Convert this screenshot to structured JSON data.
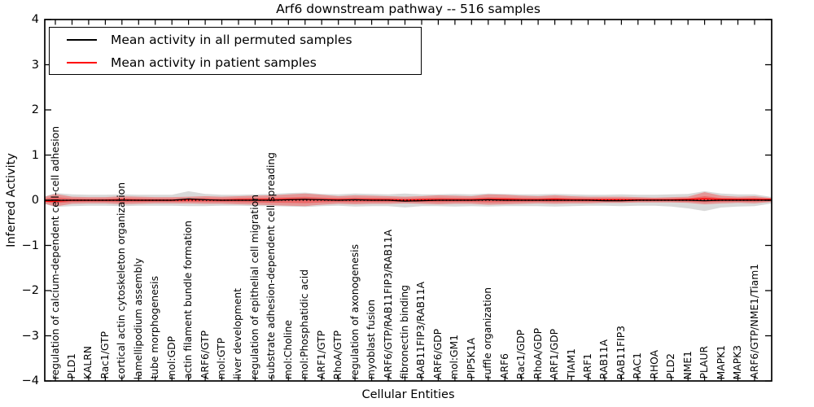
{
  "title": "Arf6 downstream pathway -- 516 samples",
  "axes": {
    "y_label": "Inferred Activity",
    "x_label": "Cellular Entities",
    "y_ticks": [
      "4",
      "3",
      "2",
      "1",
      "0",
      "−1",
      "−2",
      "−3",
      "−4"
    ]
  },
  "legend": {
    "items": [
      {
        "label": "Mean activity in all permuted samples",
        "color": "#000000"
      },
      {
        "label": "Mean activity in patient samples",
        "color": "#ff0000"
      }
    ]
  },
  "chart_data": {
    "type": "line",
    "title": "Arf6 downstream pathway -- 516 samples",
    "xlabel": "Cellular Entities",
    "ylabel": "Inferred Activity",
    "ylim": [
      -4,
      4
    ],
    "grid": false,
    "legend_position": "upper left",
    "categories": [
      "regulation of calcium-dependent cell-cell adhesion",
      "PLD1",
      "KALRN",
      "Rac1/GTP",
      "cortical actin cytoskeleton organization",
      "lamellipodium assembly",
      "tube morphogenesis",
      "mol:GDP",
      "actin filament bundle formation",
      "ARF6/GTP",
      "mol:GTP",
      "liver development",
      "regulation of epithelial cell migration",
      "substrate adhesion-dependent cell spreading",
      "mol:Choline",
      "mol:Phosphatidic acid",
      "ARF1/GTP",
      "RhoA/GTP",
      "regulation of axonogenesis",
      "myoblast fusion",
      "ARF6/GTP/RAB11FIP3/RAB11A",
      "fibronectin binding",
      "RAB11FIP3/RAB11A",
      "ARF6/GDP",
      "mol:GM1",
      "PIP5K1A",
      "ruffle organization",
      "ARF6",
      "Rac1/GDP",
      "RhoA/GDP",
      "ARF1/GDP",
      "TIAM1",
      "ARF1",
      "RAB11A",
      "RAB11FIP3",
      "RAC1",
      "RHOA",
      "PLD2",
      "NME1",
      "PLAUR",
      "MAPK1",
      "MAPK3",
      "ARF6/GTP/NME1/Tiam1"
    ],
    "series": [
      {
        "name": "Mean activity in all permuted samples",
        "color": "#000000",
        "values": [
          0.0,
          0.0,
          0.0,
          0.0,
          0.0,
          0.0,
          0.0,
          0.0,
          0.03,
          0.01,
          0.0,
          0.0,
          0.0,
          0.0,
          0.01,
          0.02,
          0.01,
          0.0,
          0.01,
          0.0,
          0.0,
          -0.02,
          -0.01,
          0.0,
          0.0,
          0.0,
          0.01,
          0.0,
          0.0,
          0.0,
          0.0,
          0.0,
          0.0,
          -0.01,
          -0.01,
          0.0,
          0.0,
          0.0,
          0.0,
          -0.01,
          0.0,
          0.0,
          0.0
        ]
      },
      {
        "name": "Mean activity in patient samples",
        "color": "#ff0000",
        "values": [
          -0.02,
          0.0,
          0.0,
          0.0,
          0.01,
          0.0,
          0.0,
          0.0,
          0.01,
          0.01,
          0.0,
          0.01,
          0.01,
          0.01,
          0.02,
          0.02,
          0.01,
          0.01,
          0.01,
          0.01,
          0.01,
          0.0,
          0.01,
          0.01,
          0.01,
          0.01,
          0.02,
          0.02,
          0.01,
          0.01,
          0.02,
          0.01,
          0.01,
          0.01,
          0.01,
          0.01,
          0.01,
          0.01,
          0.02,
          0.03,
          0.02,
          0.02,
          0.02
        ]
      }
    ],
    "bands": [
      {
        "name": "permuted samples spread",
        "color": "#aaaaaa",
        "opacity": 0.45,
        "upper": [
          0.16,
          0.13,
          0.12,
          0.12,
          0.13,
          0.12,
          0.12,
          0.12,
          0.2,
          0.14,
          0.12,
          0.12,
          0.13,
          0.14,
          0.16,
          0.17,
          0.14,
          0.13,
          0.15,
          0.14,
          0.13,
          0.15,
          0.13,
          0.13,
          0.14,
          0.13,
          0.15,
          0.14,
          0.13,
          0.13,
          0.14,
          0.13,
          0.12,
          0.12,
          0.13,
          0.12,
          0.12,
          0.13,
          0.14,
          0.2,
          0.15,
          0.13,
          0.13
        ],
        "lower": [
          -0.15,
          -0.13,
          -0.12,
          -0.12,
          -0.13,
          -0.12,
          -0.12,
          -0.12,
          -0.13,
          -0.13,
          -0.12,
          -0.12,
          -0.13,
          -0.13,
          -0.14,
          -0.15,
          -0.13,
          -0.12,
          -0.14,
          -0.13,
          -0.13,
          -0.16,
          -0.13,
          -0.13,
          -0.14,
          -0.13,
          -0.14,
          -0.13,
          -0.13,
          -0.13,
          -0.14,
          -0.13,
          -0.12,
          -0.12,
          -0.13,
          -0.12,
          -0.12,
          -0.14,
          -0.18,
          -0.24,
          -0.16,
          -0.14,
          -0.13
        ]
      },
      {
        "name": "patient samples spread",
        "color": "#ff0000",
        "opacity": 0.3,
        "upper": [
          0.14,
          0.08,
          0.07,
          0.07,
          0.09,
          0.08,
          0.07,
          0.07,
          0.08,
          0.09,
          0.08,
          0.09,
          0.1,
          0.11,
          0.13,
          0.15,
          0.12,
          0.09,
          0.11,
          0.1,
          0.09,
          0.08,
          0.09,
          0.11,
          0.1,
          0.09,
          0.13,
          0.12,
          0.1,
          0.09,
          0.11,
          0.09,
          0.08,
          0.08,
          0.08,
          0.07,
          0.06,
          0.07,
          0.08,
          0.18,
          0.1,
          0.08,
          0.09
        ],
        "lower": [
          -0.14,
          -0.08,
          -0.07,
          -0.07,
          -0.09,
          -0.08,
          -0.07,
          -0.07,
          -0.07,
          -0.08,
          -0.08,
          -0.09,
          -0.1,
          -0.11,
          -0.12,
          -0.13,
          -0.1,
          -0.08,
          -0.09,
          -0.08,
          -0.08,
          -0.07,
          -0.08,
          -0.09,
          -0.08,
          -0.08,
          -0.1,
          -0.09,
          -0.08,
          -0.07,
          -0.08,
          -0.07,
          -0.07,
          -0.06,
          -0.06,
          -0.05,
          -0.05,
          -0.05,
          -0.06,
          -0.09,
          -0.07,
          -0.06,
          -0.07
        ]
      }
    ],
    "zero_line": {
      "y": 0,
      "style": "dotted",
      "color": "#000000"
    }
  }
}
